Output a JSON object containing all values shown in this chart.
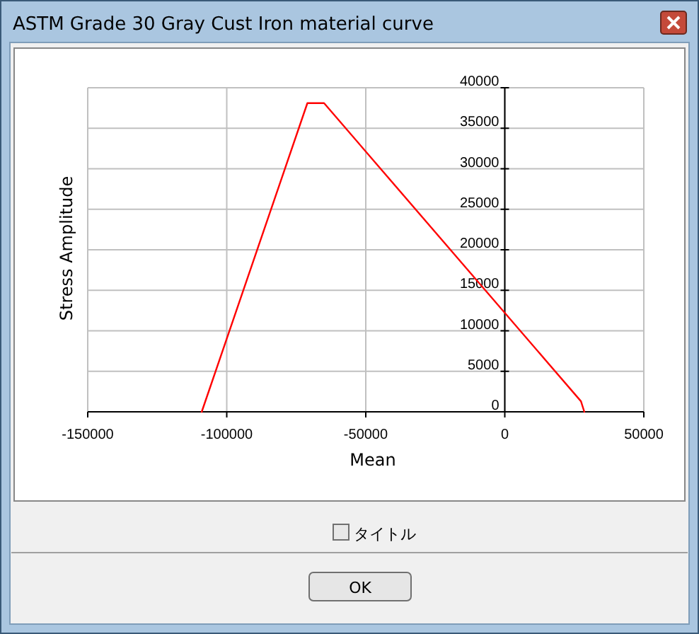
{
  "chart_data": {
    "type": "line",
    "title": "ASTM Grade 30 Gray Cust Iron material curve",
    "xlabel": "Mean",
    "ylabel": "Stress Amplitude",
    "series": [
      {
        "color": "#ff0000",
        "x": [
          -109000,
          -71000,
          -65000,
          27400,
          28600
        ],
        "values": [
          0,
          38100,
          38100,
          1300,
          0
        ]
      }
    ],
    "xlim": [
      -150000,
      50000
    ],
    "xticks": [
      -150000,
      -100000,
      -50000,
      0,
      50000
    ],
    "ylim": [
      0,
      40000
    ],
    "yticks": [
      0,
      5000,
      10000,
      15000,
      20000,
      25000,
      30000,
      35000,
      40000
    ],
    "grid": true,
    "marker": "none",
    "line_style": "solid",
    "annotations": [
      "タイトル",
      "OK"
    ]
  }
}
